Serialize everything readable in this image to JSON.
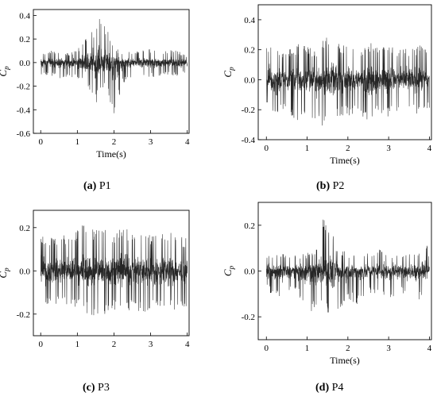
{
  "charts": [
    {
      "caption_letter": "(a)",
      "caption_label": "P1",
      "chart_data": {
        "type": "line",
        "xlabel": "Time(s)",
        "ylabel": "Cp",
        "xlim": [
          -0.2,
          4.05
        ],
        "ylim": [
          -0.6,
          0.45
        ],
        "xticks": [
          0,
          1,
          2,
          3,
          4
        ],
        "yticks": [
          -0.6,
          -0.4,
          -0.2,
          0.0,
          0.2,
          0.4
        ],
        "xtick_labels": [
          "0",
          "1",
          "2",
          "3",
          "4"
        ],
        "ytick_labels": [
          "-0.6",
          "-0.4",
          "-0.2",
          "0.0",
          "0.2",
          "0.4"
        ],
        "grid": false,
        "series": [
          {
            "color": "#000000",
            "x": [
              0,
              0.25,
              0.5,
              0.75,
              1.0,
              1.25,
              1.4,
              1.5,
              1.6,
              1.75,
              2.0,
              2.25,
              2.5,
              2.75,
              3.0,
              3.25,
              3.5,
              3.75,
              4.0
            ],
            "y_max": [
              0.08,
              0.1,
              0.1,
              0.08,
              0.11,
              0.22,
              0.33,
              0.27,
              0.4,
              0.35,
              0.12,
              0.1,
              0.09,
              0.11,
              0.12,
              0.08,
              0.12,
              0.1,
              0.06
            ],
            "y_min": [
              -0.12,
              -0.1,
              -0.15,
              -0.12,
              -0.15,
              -0.2,
              -0.3,
              -0.38,
              -0.25,
              -0.2,
              -0.45,
              -0.18,
              -0.12,
              -0.13,
              -0.12,
              -0.13,
              -0.1,
              -0.12,
              -0.08
            ]
          }
        ]
      }
    },
    {
      "caption_letter": "(b)",
      "caption_label": "P2",
      "chart_data": {
        "type": "line",
        "xlabel": "Time(s)",
        "ylabel": "Cp",
        "xlim": [
          -0.2,
          4.05
        ],
        "ylim": [
          -0.4,
          0.5
        ],
        "xticks": [
          0,
          1,
          2,
          3,
          4
        ],
        "yticks": [
          -0.4,
          -0.2,
          0.0,
          0.2,
          0.4
        ],
        "xtick_labels": [
          "0",
          "1",
          "2",
          "3",
          "4"
        ],
        "ytick_labels": [
          "-0.4",
          "-0.2",
          "0.0",
          "0.2",
          "0.4"
        ],
        "grid": false,
        "series": [
          {
            "color": "#000000",
            "x": [
              0,
              0.25,
              0.5,
              0.75,
              1.0,
              1.25,
              1.5,
              1.75,
              2.0,
              2.25,
              2.5,
              2.75,
              3.0,
              3.25,
              3.5,
              3.75,
              4.0
            ],
            "y_max": [
              0.25,
              0.22,
              0.2,
              0.24,
              0.22,
              0.2,
              0.31,
              0.25,
              0.22,
              0.2,
              0.26,
              0.22,
              0.24,
              0.2,
              0.22,
              0.24,
              0.18
            ],
            "y_min": [
              -0.2,
              -0.25,
              -0.2,
              -0.28,
              -0.22,
              -0.3,
              -0.33,
              -0.25,
              -0.25,
              -0.2,
              -0.3,
              -0.22,
              -0.25,
              -0.23,
              -0.22,
              -0.25,
              -0.2
            ]
          }
        ]
      }
    },
    {
      "caption_letter": "(c)",
      "caption_label": "P3",
      "chart_data": {
        "type": "line",
        "xlabel": "",
        "ylabel": "Cp",
        "xlim": [
          -0.2,
          4.05
        ],
        "ylim": [
          -0.3,
          0.28
        ],
        "xticks": [
          0,
          1,
          2,
          3,
          4
        ],
        "yticks": [
          -0.2,
          0.0,
          0.2
        ],
        "xtick_labels": [
          "0",
          "1",
          "2",
          "3",
          "4"
        ],
        "ytick_labels": [
          "-0.2",
          "0.0",
          "0.2"
        ],
        "grid": false,
        "series": [
          {
            "color": "#000000",
            "x": [
              0,
              0.25,
              0.5,
              0.75,
              1.0,
              1.25,
              1.5,
              1.75,
              2.0,
              2.25,
              2.5,
              2.75,
              3.0,
              3.25,
              3.5,
              3.75,
              4.0
            ],
            "y_max": [
              0.18,
              0.15,
              0.17,
              0.16,
              0.2,
              0.22,
              0.19,
              0.2,
              0.18,
              0.2,
              0.19,
              0.2,
              0.17,
              0.18,
              0.2,
              0.16,
              0.15
            ],
            "y_min": [
              -0.17,
              -0.15,
              -0.16,
              -0.18,
              -0.17,
              -0.2,
              -0.22,
              -0.2,
              -0.19,
              -0.2,
              -0.18,
              -0.19,
              -0.2,
              -0.17,
              -0.18,
              -0.19,
              -0.16
            ]
          }
        ]
      }
    },
    {
      "caption_letter": "(d)",
      "caption_label": "P4",
      "chart_data": {
        "type": "line",
        "xlabel": "Time(s)",
        "ylabel": "Cp",
        "xlim": [
          -0.2,
          4.05
        ],
        "ylim": [
          -0.3,
          0.3
        ],
        "xticks": [
          0,
          1,
          2,
          3,
          4
        ],
        "yticks": [
          -0.2,
          0.0,
          0.2
        ],
        "xtick_labels": [
          "0",
          "1",
          "2",
          "3",
          "4"
        ],
        "ytick_labels": [
          "-0.2",
          "0.0",
          "0.2"
        ],
        "grid": false,
        "series": [
          {
            "color": "#000000",
            "x": [
              0,
              0.25,
              0.5,
              0.75,
              1.0,
              1.25,
              1.4,
              1.5,
              1.75,
              2.0,
              2.25,
              2.5,
              2.75,
              3.0,
              3.25,
              3.5,
              3.75,
              3.85,
              4.0
            ],
            "y_max": [
              0.08,
              0.07,
              0.08,
              0.07,
              0.08,
              0.1,
              0.24,
              0.22,
              0.1,
              0.08,
              0.07,
              0.08,
              0.1,
              0.08,
              0.08,
              0.08,
              0.1,
              0.2,
              0.07
            ],
            "y_min": [
              -0.08,
              -0.12,
              -0.1,
              -0.08,
              -0.21,
              -0.15,
              -0.18,
              -0.2,
              -0.2,
              -0.12,
              -0.15,
              -0.1,
              -0.1,
              -0.12,
              -0.1,
              -0.1,
              -0.13,
              -0.1,
              -0.08
            ]
          }
        ]
      }
    }
  ]
}
